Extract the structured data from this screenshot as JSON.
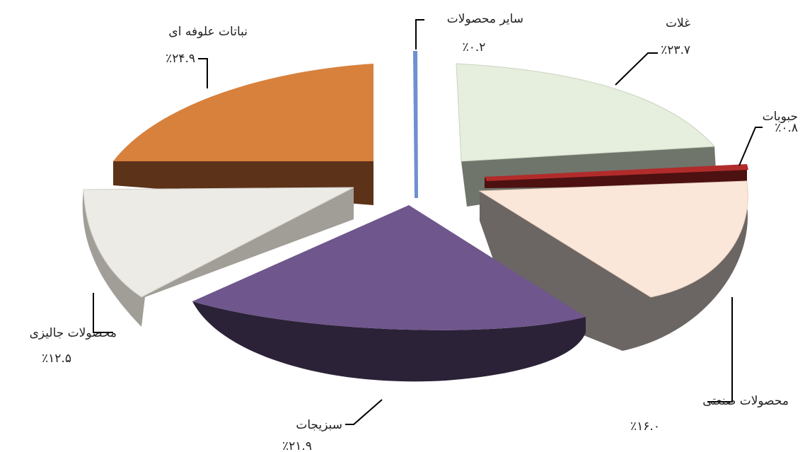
{
  "chart_data": {
    "type": "pie",
    "style": "3d-exploded",
    "slices": [
      {
        "label": "غلات",
        "value": 23.7,
        "value_label": "٪۲۳.۷",
        "color": "#e6efdd"
      },
      {
        "label": "حبوبات",
        "value": 0.8,
        "value_label": "٪۰.۸",
        "color": "#b22b2b"
      },
      {
        "label": "محصولات صنعتی",
        "value": 16.0,
        "value_label": "٪۱۶.۰",
        "color": "#fbe7d9"
      },
      {
        "label": "سبزیجات",
        "value": 21.9,
        "value_label": "٪۲۱.۹",
        "color": "#6f568c"
      },
      {
        "label": "محصولات جالیزی",
        "value": 12.5,
        "value_label": "٪۱۲.۵",
        "color": "#ecebe6"
      },
      {
        "label": "نباتات علوفه ای",
        "value": 24.9,
        "value_label": "٪۲۴.۹",
        "color": "#d7813d"
      },
      {
        "label": "سایر محصولات",
        "value": 0.2,
        "value_label": "٪۰.۲",
        "color": "#6f8fd0"
      }
    ]
  }
}
